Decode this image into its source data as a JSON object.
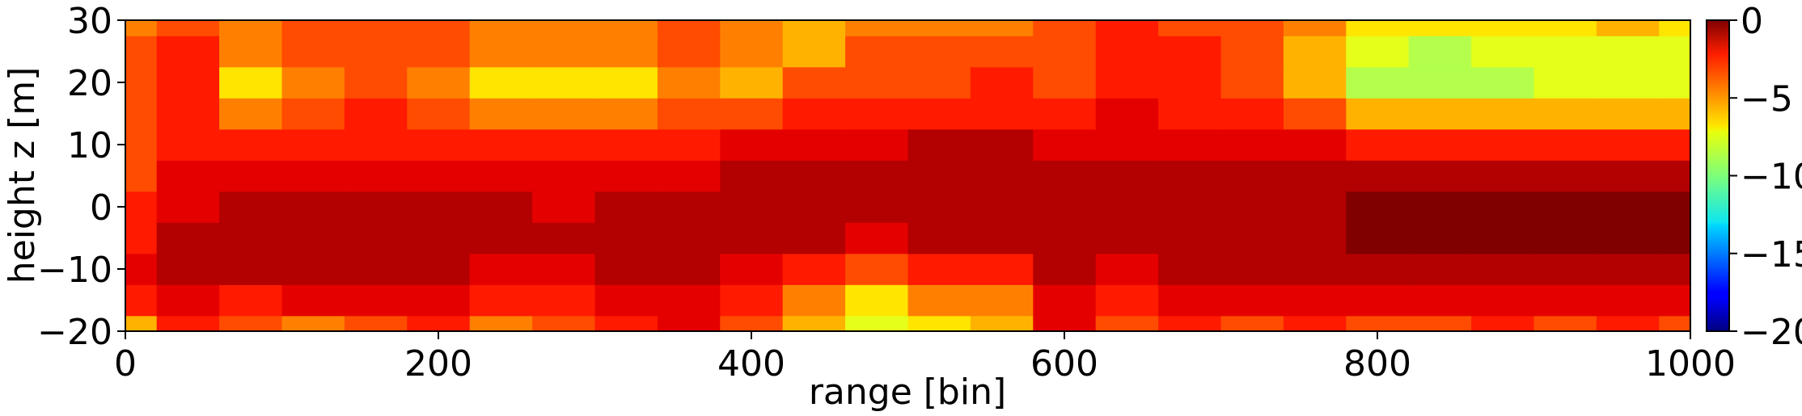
{
  "chart_data": {
    "type": "heatmap",
    "title": "",
    "xlabel": "range [bin]",
    "ylabel": "height z [m]",
    "xlim": [
      0,
      1000
    ],
    "ylim": [
      -20,
      30
    ],
    "xticks": [
      0,
      200,
      400,
      600,
      800,
      1000
    ],
    "yticks": [
      -20,
      -10,
      0,
      10,
      20,
      30
    ],
    "colorbar": {
      "colormap": "jet",
      "range": [
        -20,
        0
      ],
      "ticks": [
        -20,
        -15,
        -10,
        -5,
        0
      ]
    },
    "z_units": "",
    "grid": false,
    "x": [
      0,
      40,
      80,
      120,
      160,
      200,
      240,
      280,
      320,
      360,
      400,
      440,
      480,
      520,
      560,
      600,
      640,
      680,
      720,
      760,
      800,
      840,
      880,
      920,
      960,
      1000
    ],
    "y": [
      -20,
      -15,
      -10,
      -5,
      0,
      5,
      10,
      15,
      20,
      25,
      30
    ],
    "z": [
      [
        -6,
        -3,
        -4,
        -5,
        -4,
        -3,
        -5,
        -4,
        -3,
        -2,
        -4,
        -6,
        -8,
        -7,
        -6,
        -2,
        -4,
        -3,
        -4,
        -3,
        -4,
        -4,
        -3,
        -4,
        -3,
        -4
      ],
      [
        -3,
        -2,
        -3,
        -2,
        -2,
        -2,
        -3,
        -3,
        -2,
        -2,
        -3,
        -5,
        -7,
        -5,
        -5,
        -2,
        -3,
        -2,
        -2,
        -2,
        -2,
        -2,
        -2,
        -2,
        -2,
        -2
      ],
      [
        -2,
        -1,
        -1,
        -1,
        -1,
        -1,
        -2,
        -2,
        -1,
        -1,
        -2,
        -3,
        -4,
        -3,
        -3,
        -1,
        -2,
        -1,
        -1,
        -1,
        -1,
        -1,
        -1,
        -1,
        -1,
        -1
      ],
      [
        -3,
        -1,
        -1,
        -1,
        -1,
        -1,
        -1,
        -1,
        -1,
        -1,
        -1,
        -1,
        -2,
        -1,
        -1,
        -1,
        -1,
        -1,
        -1,
        -1,
        0,
        0,
        0,
        0,
        0,
        0
      ],
      [
        -3,
        -2,
        -1,
        -1,
        -1,
        -1,
        -1,
        -2,
        -1,
        -1,
        -1,
        -1,
        -1,
        -1,
        -1,
        -1,
        -1,
        -1,
        -1,
        -1,
        0,
        0,
        0,
        0,
        0,
        0
      ],
      [
        -4,
        -2,
        -2,
        -2,
        -2,
        -2,
        -2,
        -2,
        -2,
        -2,
        -1,
        -1,
        -1,
        -1,
        -1,
        -1,
        -1,
        -1,
        -1,
        -1,
        -1,
        -1,
        -1,
        -1,
        -1,
        -1
      ],
      [
        -4,
        -3,
        -3,
        -3,
        -3,
        -3,
        -3,
        -3,
        -3,
        -3,
        -2,
        -2,
        -2,
        -1,
        -1,
        -2,
        -2,
        -2,
        -2,
        -2,
        -3,
        -3,
        -3,
        -3,
        -3,
        -3
      ],
      [
        -4,
        -3,
        -5,
        -4,
        -3,
        -4,
        -5,
        -5,
        -5,
        -4,
        -4,
        -3,
        -3,
        -3,
        -3,
        -3,
        -2,
        -3,
        -3,
        -4,
        -6,
        -6,
        -6,
        -6,
        -6,
        -6
      ],
      [
        -4,
        -3,
        -7,
        -5,
        -4,
        -5,
        -7,
        -7,
        -7,
        -5,
        -6,
        -4,
        -4,
        -4,
        -3,
        -4,
        -3,
        -3,
        -4,
        -6,
        -9,
        -9,
        -9,
        -8,
        -8,
        -8
      ],
      [
        -4,
        -3,
        -5,
        -4,
        -4,
        -4,
        -5,
        -5,
        -5,
        -4,
        -5,
        -6,
        -4,
        -4,
        -4,
        -4,
        -3,
        -3,
        -4,
        -6,
        -8,
        -9,
        -8,
        -8,
        -8,
        -8
      ],
      [
        -5,
        -4,
        -5,
        -4,
        -4,
        -4,
        -5,
        -5,
        -5,
        -4,
        -5,
        -6,
        -5,
        -5,
        -5,
        -4,
        -3,
        -4,
        -4,
        -5,
        -7,
        -7,
        -7,
        -7,
        -6,
        -7
      ]
    ]
  }
}
